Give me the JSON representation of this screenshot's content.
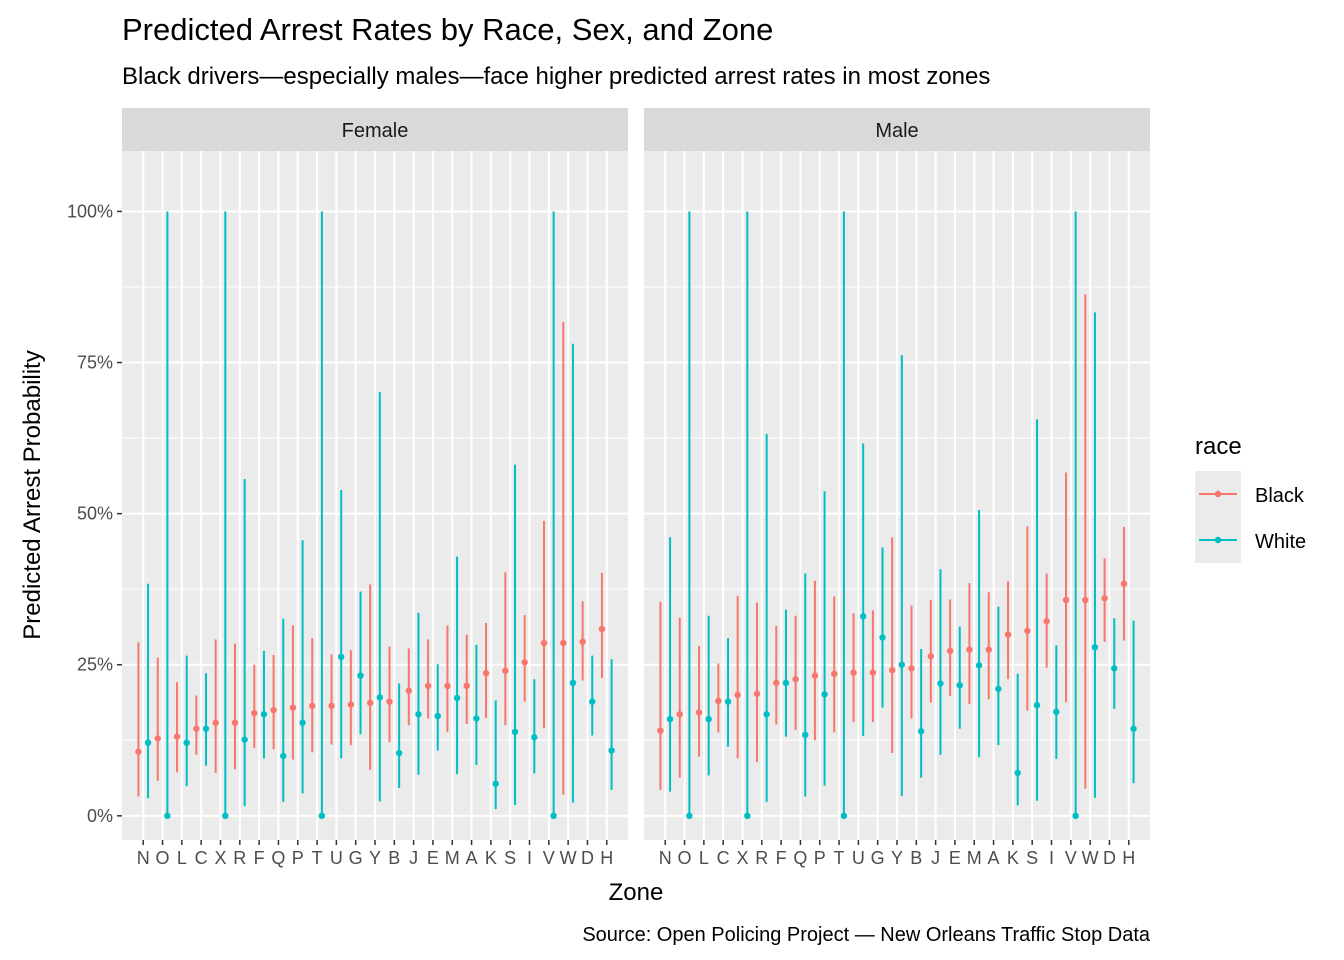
{
  "chart_data": {
    "type": "scatter",
    "title": "Predicted Arrest Rates by Race, Sex, and Zone",
    "subtitle": "Black drivers—especially males—face higher predicted arrest rates in most zones",
    "caption": "Source: Open Policing Project — New Orleans Traffic Stop Data",
    "xlabel": "Zone",
    "ylabel": "Predicted Arrest Probability",
    "ylim": [
      -0.04,
      1.1
    ],
    "yticks": [
      0,
      0.25,
      0.5,
      0.75,
      1.0
    ],
    "ytick_labels": [
      "0%",
      "25%",
      "50%",
      "75%",
      "100%"
    ],
    "grid": true,
    "legend": {
      "title": "race",
      "placement": "right",
      "entries": [
        {
          "name": "Black",
          "color": "#F8766D"
        },
        {
          "name": "White",
          "color": "#00BFC4"
        }
      ]
    },
    "colors": {
      "Black": "#F8766D",
      "White": "#00BFC4"
    },
    "facets": [
      {
        "label": "Female",
        "categories": [
          "N",
          "O",
          "L",
          "C",
          "X",
          "R",
          "F",
          "Q",
          "P",
          "T",
          "U",
          "G",
          "Y",
          "B",
          "J",
          "E",
          "M",
          "A",
          "K",
          "S",
          "I",
          "V",
          "W",
          "D",
          "H"
        ],
        "series": [
          {
            "name": "Black",
            "values": [
              0.106,
              0.128,
              0.131,
              0.144,
              0.154,
              0.154,
              0.17,
              0.175,
              0.179,
              0.182,
              0.182,
              0.184,
              0.187,
              0.189,
              0.207,
              0.215,
              0.215,
              0.215,
              0.236,
              0.24,
              0.254,
              0.286,
              0.286,
              0.288,
              0.309
            ],
            "lower": [
              0.032,
              0.058,
              0.072,
              0.101,
              0.071,
              0.077,
              0.112,
              0.11,
              0.093,
              0.105,
              0.118,
              0.117,
              0.076,
              0.122,
              0.15,
              0.161,
              0.139,
              0.152,
              0.162,
              0.15,
              0.189,
              0.145,
              0.035,
              0.224,
              0.228
            ],
            "upper": [
              0.287,
              0.262,
              0.221,
              0.199,
              0.292,
              0.285,
              0.25,
              0.266,
              0.315,
              0.294,
              0.267,
              0.274,
              0.383,
              0.28,
              0.277,
              0.292,
              0.315,
              0.3,
              0.319,
              0.403,
              0.332,
              0.488,
              0.817,
              0.355,
              0.402
            ]
          },
          {
            "name": "White",
            "values": [
              0.121,
              0.0,
              0.121,
              0.144,
              0.0,
              0.126,
              0.168,
              0.099,
              0.154,
              0.0,
              0.263,
              0.232,
              0.196,
              0.104,
              0.168,
              0.165,
              0.195,
              0.161,
              0.053,
              0.139,
              0.13,
              0.0,
              0.22,
              0.189,
              0.108
            ],
            "lower": [
              0.029,
              0.0,
              0.049,
              0.083,
              0.0,
              0.016,
              0.095,
              0.023,
              0.037,
              0.0,
              0.095,
              0.135,
              0.024,
              0.046,
              0.068,
              0.108,
              0.069,
              0.084,
              0.011,
              0.018,
              0.07,
              0.0,
              0.022,
              0.133,
              0.043
            ],
            "upper": [
              0.384,
              1.0,
              0.265,
              0.236,
              1.0,
              0.557,
              0.273,
              0.326,
              0.456,
              1.0,
              0.539,
              0.371,
              0.701,
              0.219,
              0.336,
              0.251,
              0.429,
              0.283,
              0.191,
              0.581,
              0.226,
              1.0,
              0.781,
              0.265,
              0.259
            ]
          }
        ]
      },
      {
        "label": "Male",
        "categories": [
          "N",
          "O",
          "L",
          "C",
          "X",
          "R",
          "F",
          "Q",
          "P",
          "T",
          "U",
          "G",
          "Y",
          "B",
          "J",
          "E",
          "M",
          "A",
          "K",
          "S",
          "I",
          "V",
          "W",
          "D",
          "H"
        ],
        "series": [
          {
            "name": "Black",
            "values": [
              0.141,
              0.168,
              0.171,
              0.19,
              0.2,
              0.202,
              0.22,
              0.226,
              0.232,
              0.235,
              0.237,
              0.237,
              0.241,
              0.244,
              0.264,
              0.273,
              0.275,
              0.275,
              0.3,
              0.306,
              0.322,
              0.357,
              0.357,
              0.36,
              0.384
            ],
            "lower": [
              0.043,
              0.063,
              0.098,
              0.138,
              0.095,
              0.089,
              0.151,
              0.142,
              0.125,
              0.138,
              0.155,
              0.155,
              0.104,
              0.161,
              0.187,
              0.198,
              0.185,
              0.193,
              0.226,
              0.174,
              0.245,
              0.188,
              0.045,
              0.288,
              0.29
            ],
            "upper": [
              0.354,
              0.328,
              0.281,
              0.252,
              0.364,
              0.353,
              0.314,
              0.331,
              0.389,
              0.363,
              0.335,
              0.34,
              0.461,
              0.348,
              0.357,
              0.358,
              0.385,
              0.37,
              0.388,
              0.479,
              0.401,
              0.568,
              0.863,
              0.426,
              0.478
            ]
          },
          {
            "name": "White",
            "values": [
              0.16,
              0.0,
              0.16,
              0.189,
              0.0,
              0.168,
              0.22,
              0.134,
              0.201,
              0.0,
              0.33,
              0.295,
              0.25,
              0.14,
              0.219,
              0.216,
              0.249,
              0.21,
              0.071,
              0.183,
              0.172,
              0.0,
              0.279,
              0.244,
              0.144
            ],
            "lower": [
              0.04,
              0.0,
              0.067,
              0.114,
              0.0,
              0.023,
              0.131,
              0.032,
              0.05,
              0.0,
              0.132,
              0.179,
              0.033,
              0.063,
              0.101,
              0.144,
              0.097,
              0.117,
              0.017,
              0.025,
              0.094,
              0.0,
              0.03,
              0.177,
              0.054
            ],
            "upper": [
              0.461,
              1.0,
              0.331,
              0.294,
              1.0,
              0.632,
              0.341,
              0.401,
              0.537,
              1.0,
              0.616,
              0.444,
              0.762,
              0.276,
              0.408,
              0.313,
              0.506,
              0.346,
              0.235,
              0.656,
              0.282,
              1.0,
              0.833,
              0.327,
              0.323
            ]
          }
        ]
      }
    ]
  }
}
